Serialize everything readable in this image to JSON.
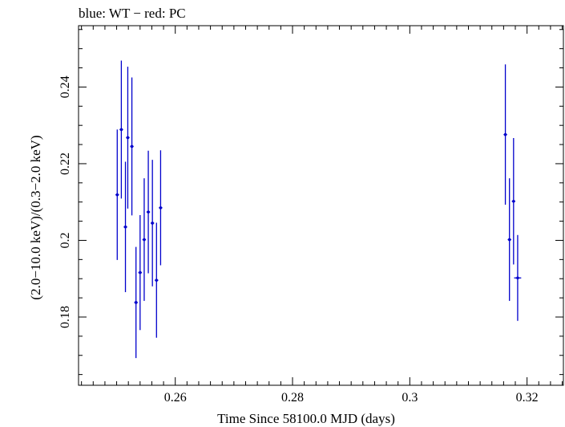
{
  "chart_data": {
    "type": "scatter",
    "title": "blue: WT − red: PC",
    "xlabel": "Time Since 58100.0 MJD (days)",
    "ylabel": "(2.0−10.0 keV)/(0.3−2.0 keV)",
    "xlim": [
      0.2435,
      0.3262
    ],
    "ylim": [
      0.1622,
      0.256
    ],
    "xticks": [
      0.26,
      0.28,
      0.3,
      0.32
    ],
    "xtick_labels": [
      "0.26",
      "0.28",
      "0.3",
      "0.32"
    ],
    "yticks": [
      0.18,
      0.2,
      0.22,
      0.24
    ],
    "ytick_labels": [
      "0.18",
      "0.2",
      "0.22",
      "0.24"
    ],
    "grid": false,
    "colors": {
      "series": "#0000cc"
    },
    "series": [
      {
        "x": [
          0.2501,
          0.2508,
          0.2515,
          0.2519,
          0.2526,
          0.2533,
          0.254,
          0.2547,
          0.2554,
          0.2561,
          0.2568,
          0.2575,
          0.3163,
          0.317,
          0.3177,
          0.3184
        ],
        "y": [
          0.2119,
          0.2289,
          0.2035,
          0.2268,
          0.2245,
          0.1838,
          0.1916,
          0.2002,
          0.2074,
          0.2045,
          0.1896,
          0.2085,
          0.2276,
          0.2002,
          0.2102,
          0.1902
        ],
        "y_err": [
          0.017,
          0.018,
          0.017,
          0.0185,
          0.018,
          0.0145,
          0.015,
          0.016,
          0.016,
          0.0165,
          0.015,
          0.015,
          0.0183,
          0.016,
          0.0165,
          0.0112
        ],
        "x_err": [
          0.0003,
          0.0003,
          0.0003,
          0.0003,
          0.0003,
          0.0003,
          0.0003,
          0.0003,
          0.0003,
          0.0003,
          0.0003,
          0.0003,
          0.0003,
          0.0003,
          0.0003,
          0.0006
        ]
      }
    ]
  }
}
